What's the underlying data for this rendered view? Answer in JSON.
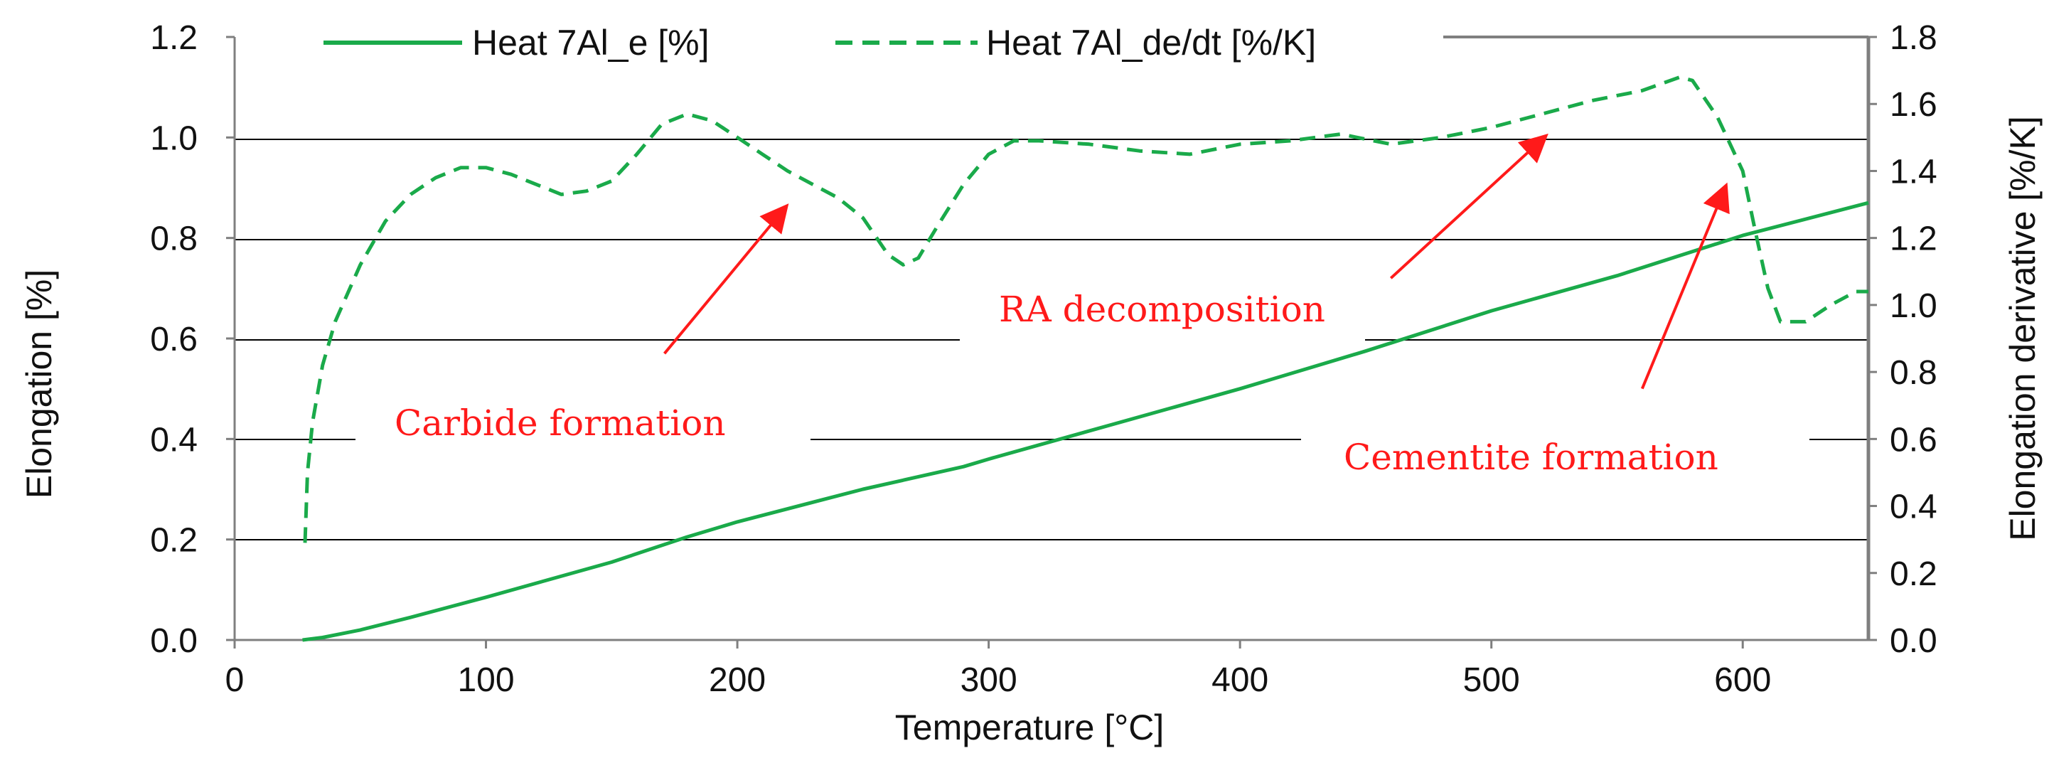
{
  "chart_data": {
    "type": "line",
    "xlabel": "Temperature [°C]",
    "ylabel": "Elongation [%]",
    "y2label": "Elongation derivative [%/K]",
    "xlim": [
      0,
      650
    ],
    "ylim": [
      0,
      1.2
    ],
    "y2lim": [
      0,
      1.8
    ],
    "x_ticks": [
      "0",
      "100",
      "200",
      "300",
      "400",
      "500",
      "600"
    ],
    "y_ticks": [
      "0.0",
      "0.2",
      "0.4",
      "0.6",
      "0.8",
      "1.0",
      "1.2"
    ],
    "y2_ticks": [
      "0.0",
      "0.2",
      "0.4",
      "0.6",
      "0.8",
      "1.0",
      "1.2",
      "1.4",
      "1.6",
      "1.8"
    ],
    "grid": "horizontal",
    "legend_position": "top",
    "colors": {
      "series": "#1aaa4a",
      "annotation": "#ff1a1a",
      "axis": "#7f7f7f",
      "grid": "#000000"
    },
    "series": [
      {
        "name": "Heat 7Al_e [%]",
        "axis": "left",
        "style": "solid",
        "points": [
          [
            27,
            0
          ],
          [
            35,
            0.005
          ],
          [
            50,
            0.02
          ],
          [
            70,
            0.045
          ],
          [
            100,
            0.085
          ],
          [
            150,
            0.155
          ],
          [
            180,
            0.205
          ],
          [
            200,
            0.235
          ],
          [
            250,
            0.3
          ],
          [
            290,
            0.345
          ],
          [
            300,
            0.36
          ],
          [
            350,
            0.43
          ],
          [
            400,
            0.5
          ],
          [
            450,
            0.575
          ],
          [
            500,
            0.655
          ],
          [
            550,
            0.725
          ],
          [
            600,
            0.805
          ],
          [
            650,
            0.87
          ]
        ]
      },
      {
        "name": "Heat 7Al_de/dt [%/K]",
        "axis": "right",
        "style": "dashed",
        "points": [
          [
            28,
            0.29
          ],
          [
            29,
            0.5
          ],
          [
            31,
            0.65
          ],
          [
            35,
            0.82
          ],
          [
            40,
            0.95
          ],
          [
            50,
            1.12
          ],
          [
            60,
            1.25
          ],
          [
            70,
            1.33
          ],
          [
            80,
            1.38
          ],
          [
            90,
            1.41
          ],
          [
            100,
            1.41
          ],
          [
            110,
            1.39
          ],
          [
            120,
            1.36
          ],
          [
            130,
            1.33
          ],
          [
            140,
            1.34
          ],
          [
            150,
            1.37
          ],
          [
            160,
            1.45
          ],
          [
            170,
            1.54
          ],
          [
            180,
            1.57
          ],
          [
            190,
            1.55
          ],
          [
            200,
            1.5
          ],
          [
            210,
            1.45
          ],
          [
            220,
            1.4
          ],
          [
            230,
            1.36
          ],
          [
            240,
            1.32
          ],
          [
            250,
            1.26
          ],
          [
            260,
            1.15
          ],
          [
            266,
            1.12
          ],
          [
            272,
            1.14
          ],
          [
            280,
            1.24
          ],
          [
            290,
            1.36
          ],
          [
            300,
            1.45
          ],
          [
            310,
            1.49
          ],
          [
            320,
            1.49
          ],
          [
            340,
            1.48
          ],
          [
            360,
            1.46
          ],
          [
            380,
            1.45
          ],
          [
            400,
            1.48
          ],
          [
            420,
            1.49
          ],
          [
            440,
            1.51
          ],
          [
            460,
            1.48
          ],
          [
            480,
            1.5
          ],
          [
            500,
            1.53
          ],
          [
            520,
            1.57
          ],
          [
            540,
            1.61
          ],
          [
            560,
            1.64
          ],
          [
            575,
            1.68
          ],
          [
            580,
            1.67
          ],
          [
            590,
            1.56
          ],
          [
            600,
            1.4
          ],
          [
            605,
            1.22
          ],
          [
            610,
            1.05
          ],
          [
            615,
            0.95
          ],
          [
            625,
            0.95
          ],
          [
            635,
            1.0
          ],
          [
            645,
            1.04
          ],
          [
            650,
            1.04
          ]
        ]
      }
    ],
    "annotations": [
      {
        "text": "Carbide formation",
        "arrow_from": [
          171,
          0.57
        ],
        "arrow_to": [
          219,
          0.86
        ]
      },
      {
        "text": "RA decomposition",
        "arrow_from": [
          460,
          0.72
        ],
        "arrow_to": [
          521,
          1.0
        ]
      },
      {
        "text": "Cementite formation",
        "arrow_from": [
          560,
          0.5
        ],
        "arrow_to": [
          593,
          0.9
        ]
      }
    ]
  }
}
